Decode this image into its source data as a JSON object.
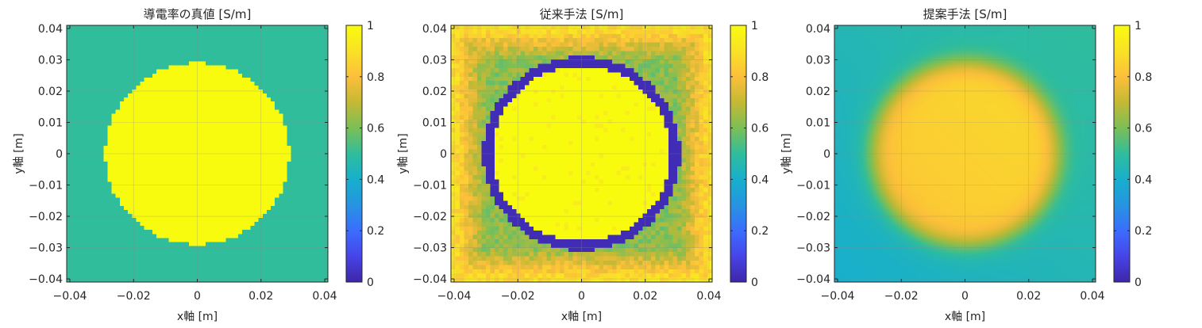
{
  "chart_data": [
    {
      "type": "heatmap",
      "title": "導電率の真値 [S/m]",
      "xlabel": "x軸 [m]",
      "ylabel": "y軸 [m]",
      "xlim": [
        -0.041,
        0.041
      ],
      "ylim": [
        -0.041,
        0.041
      ],
      "xticks": [
        -0.04,
        -0.02,
        0,
        0.02,
        0.04
      ],
      "xtick_labels": [
        "−0.04",
        "−0.02",
        "0",
        "0.02",
        "0.04"
      ],
      "yticks": [
        0.04,
        0.03,
        0.02,
        0.01,
        0,
        -0.01,
        -0.02,
        -0.03,
        -0.04
      ],
      "ytick_labels": [
        "0.04",
        "0.03",
        "0.02",
        "0.01",
        "0",
        "−0.01",
        "−0.02",
        "−0.03",
        "−0.04"
      ],
      "grid": true,
      "colorbar": {
        "range": [
          0,
          1
        ],
        "ticks": [
          0,
          0.2,
          0.4,
          0.6,
          0.8,
          1
        ],
        "tick_labels": [
          "0",
          "0.2",
          "0.4",
          "0.6",
          "0.8",
          "1"
        ]
      },
      "field": {
        "kind": "disk",
        "radius": 0.029,
        "inside": 1.0,
        "background": 0.5,
        "ring": 0,
        "edge_blur": 0
      }
    },
    {
      "type": "heatmap",
      "title": "従来手法 [S/m]",
      "xlabel": "x軸 [m]",
      "ylabel": "y軸 [m]",
      "xlim": [
        -0.041,
        0.041
      ],
      "ylim": [
        -0.041,
        0.041
      ],
      "xticks": [
        -0.04,
        -0.02,
        0,
        0.02,
        0.04
      ],
      "xtick_labels": [
        "−0.04",
        "−0.02",
        "0",
        "0.02",
        "0.04"
      ],
      "yticks": [
        0.04,
        0.03,
        0.02,
        0.01,
        0,
        -0.01,
        -0.02,
        -0.03,
        -0.04
      ],
      "ytick_labels": [
        "0.04",
        "0.03",
        "0.02",
        "0.01",
        "0",
        "−0.01",
        "−0.02",
        "−0.03",
        "−0.04"
      ],
      "grid": true,
      "colorbar": {
        "range": [
          0,
          1
        ],
        "ticks": [
          0,
          0.2,
          0.4,
          0.6,
          0.8,
          1
        ],
        "tick_labels": [
          "0",
          "0.2",
          "0.4",
          "0.6",
          "0.8",
          "1"
        ]
      },
      "field": {
        "kind": "disk",
        "radius": 0.028,
        "inside": 1.0,
        "background": 0.62,
        "ring": 1,
        "ring_value": 0.02,
        "ring_width": 0.003,
        "outer_value": 0.92,
        "edge_blur": 0
      }
    },
    {
      "type": "heatmap",
      "title": "提案手法 [S/m]",
      "xlabel": "x軸 [m]",
      "ylabel": "y軸 [m]",
      "xlim": [
        -0.041,
        0.041
      ],
      "ylim": [
        -0.041,
        0.041
      ],
      "xticks": [
        -0.04,
        -0.02,
        0,
        0.02,
        0.04
      ],
      "xtick_labels": [
        "−0.04",
        "−0.02",
        "0",
        "0.02",
        "0.04"
      ],
      "yticks": [
        0.04,
        0.03,
        0.02,
        0.01,
        0,
        -0.01,
        -0.02,
        -0.03,
        -0.04
      ],
      "ytick_labels": [
        "0.04",
        "0.03",
        "0.02",
        "0.01",
        "0",
        "−0.01",
        "−0.02",
        "−0.03",
        "−0.04"
      ],
      "grid": true,
      "colorbar": {
        "range": [
          0,
          1
        ],
        "ticks": [
          0,
          0.2,
          0.4,
          0.6,
          0.8,
          1
        ],
        "tick_labels": [
          "0",
          "0.2",
          "0.4",
          "0.6",
          "0.8",
          "1"
        ]
      },
      "field": {
        "kind": "disk",
        "radius": 0.029,
        "inside": 0.85,
        "background": 0.45,
        "ring": 0,
        "edge_blur": 0.0022
      }
    }
  ],
  "colors": {
    "parula": [
      "#3e26a8",
      "#4744e8",
      "#3b6dfe",
      "#2694e1",
      "#17afcd",
      "#30bd9c",
      "#7bbf56",
      "#c4b934",
      "#fcbf3b",
      "#f9e225",
      "#f9fb0e"
    ],
    "axis": "#262626",
    "grid": "#8a8a8a"
  }
}
